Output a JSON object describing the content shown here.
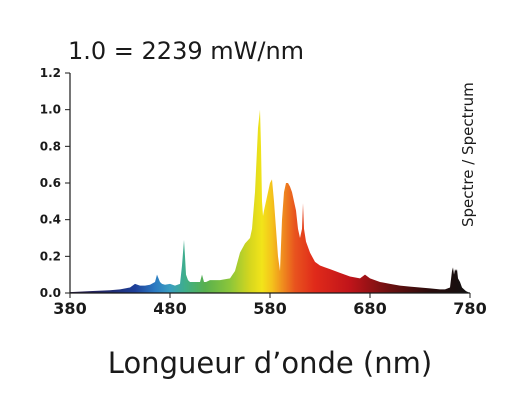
{
  "chart_data": {
    "type": "area",
    "title": "1.0 = 2239 mW/nm",
    "xlabel": "Longueur d’onde (nm)",
    "ylabel": "",
    "side_label": "Spectre / Spectrum",
    "xlim": [
      380,
      780
    ],
    "ylim": [
      0,
      1.2
    ],
    "x_ticks": [
      380,
      480,
      580,
      680,
      780
    ],
    "x_tick_labels": [
      "380",
      "480",
      "580",
      "680",
      "780"
    ],
    "y_ticks": [
      0,
      0.2,
      0.4,
      0.6,
      0.8,
      1.0,
      1.2
    ],
    "y_tick_labels": [
      "0.0",
      "0.2",
      "0.4",
      "0.6",
      "0.8",
      "1.0",
      "1.2"
    ],
    "grid": false,
    "fill": "wavelength-colored spectrum",
    "series": [
      {
        "x": [
          380,
          400,
          420,
          430,
          440,
          445,
          450,
          455,
          460,
          465,
          467,
          470,
          472,
          475,
          480,
          485,
          490,
          492,
          494,
          495,
          496,
          498,
          500,
          505,
          510,
          512,
          514,
          516,
          520,
          530,
          540,
          545,
          548,
          550,
          555,
          560,
          562,
          565,
          568,
          570,
          571,
          572,
          573,
          574,
          576,
          578,
          580,
          582,
          584,
          586,
          588,
          590,
          592,
          594,
          596,
          598,
          600,
          602,
          604,
          606,
          608,
          610,
          612,
          613,
          614,
          616,
          618,
          620,
          625,
          630,
          635,
          640,
          645,
          650,
          660,
          670,
          675,
          680,
          690,
          700,
          710,
          720,
          730,
          740,
          750,
          755,
          760,
          762,
          763,
          764,
          765,
          766,
          767,
          768,
          770,
          772,
          774,
          776,
          780
        ],
        "y": [
          0.005,
          0.01,
          0.015,
          0.02,
          0.03,
          0.05,
          0.04,
          0.04,
          0.045,
          0.06,
          0.1,
          0.06,
          0.05,
          0.045,
          0.05,
          0.04,
          0.05,
          0.15,
          0.29,
          0.2,
          0.1,
          0.07,
          0.06,
          0.06,
          0.06,
          0.1,
          0.06,
          0.06,
          0.07,
          0.07,
          0.08,
          0.12,
          0.18,
          0.22,
          0.27,
          0.3,
          0.35,
          0.55,
          0.9,
          1.0,
          0.8,
          0.5,
          0.42,
          0.45,
          0.5,
          0.55,
          0.6,
          0.62,
          0.5,
          0.35,
          0.2,
          0.12,
          0.4,
          0.55,
          0.6,
          0.6,
          0.58,
          0.55,
          0.5,
          0.45,
          0.35,
          0.3,
          0.35,
          0.49,
          0.35,
          0.28,
          0.25,
          0.22,
          0.17,
          0.15,
          0.14,
          0.13,
          0.12,
          0.11,
          0.09,
          0.08,
          0.1,
          0.08,
          0.06,
          0.05,
          0.04,
          0.035,
          0.03,
          0.025,
          0.02,
          0.02,
          0.03,
          0.12,
          0.14,
          0.1,
          0.13,
          0.12,
          0.13,
          0.08,
          0.06,
          0.03,
          0.02,
          0.01,
          0.0
        ]
      }
    ]
  }
}
